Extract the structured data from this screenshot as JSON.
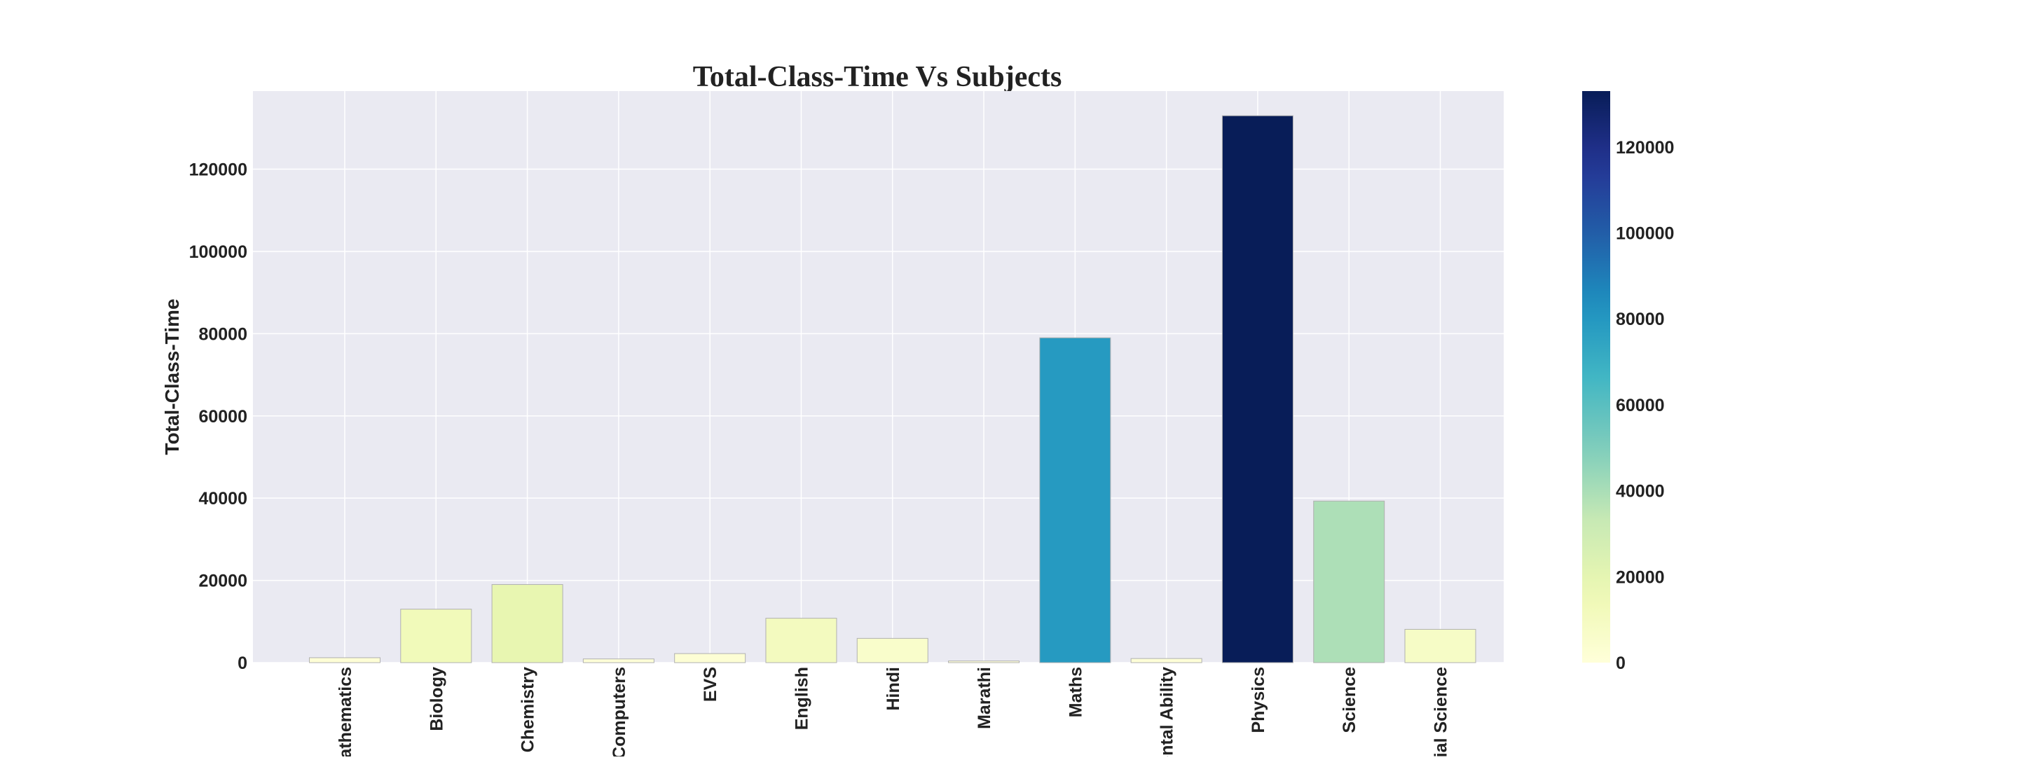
{
  "chart_data": {
    "type": "bar",
    "title": "Total-Class-Time Vs Subjects",
    "xlabel": "",
    "ylabel": "Total-Class-Time",
    "categories": [
      "Mathematics",
      "Biology",
      "Chemistry",
      "Computers",
      "EVS",
      "English",
      "Hindi",
      "Marathi",
      "Maths",
      "Mental Ability",
      "Physics",
      "Science",
      "Social Science"
    ],
    "values": [
      1200,
      13000,
      19000,
      900,
      2200,
      10800,
      5900,
      400,
      79000,
      1000,
      133000,
      39300,
      8100
    ],
    "ylim": [
      0,
      139000
    ],
    "yticks": [
      0,
      20000,
      40000,
      60000,
      80000,
      100000,
      120000
    ],
    "ytick_labels": [
      "0",
      "20000",
      "40000",
      "60000",
      "80000",
      "100000",
      "120000"
    ],
    "grid": true,
    "colormap": "YlGnBu",
    "colorbar": {
      "range": [
        0,
        133000
      ],
      "ticks": [
        0,
        20000,
        40000,
        60000,
        80000,
        100000,
        120000
      ],
      "tick_labels": [
        "0",
        "20000",
        "40000",
        "60000",
        "80000",
        "100000",
        "120000"
      ]
    }
  },
  "colors": {
    "plot_background": "#eaeaf2",
    "grid": "#ffffff",
    "bar_edge": "#b0b0b0",
    "text": "#222222"
  }
}
